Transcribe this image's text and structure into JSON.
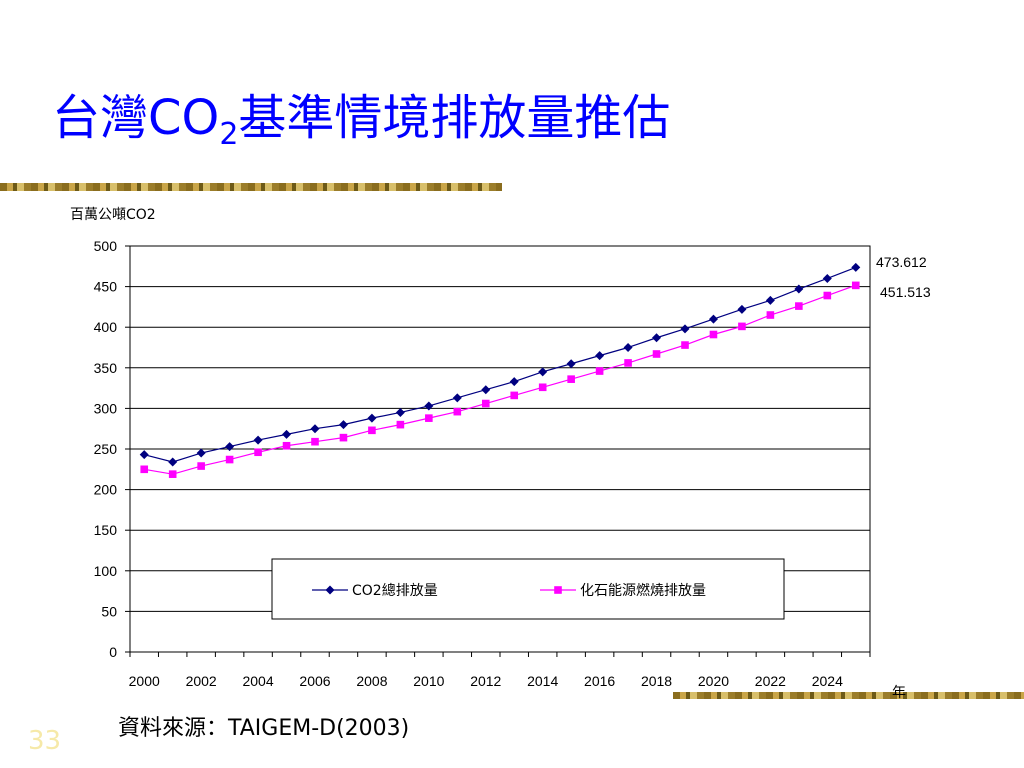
{
  "slide": {
    "title_prefix": "台灣CO",
    "title_sub": "2",
    "title_suffix": "基準情境排放量推估",
    "source": "資料來源：TAIGEM-D(2003)",
    "page_number": "33"
  },
  "chart_data": {
    "type": "line",
    "ylabel": "百萬公噸CO2",
    "xlabel": "年",
    "ylim": [
      0,
      500
    ],
    "yticks": [
      0,
      50,
      100,
      150,
      200,
      250,
      300,
      350,
      400,
      450,
      500
    ],
    "x": [
      2000,
      2001,
      2002,
      2003,
      2004,
      2005,
      2006,
      2007,
      2008,
      2009,
      2010,
      2011,
      2012,
      2013,
      2014,
      2015,
      2016,
      2017,
      2018,
      2019,
      2020,
      2021,
      2022,
      2023,
      2024,
      2025
    ],
    "xtick_labels": [
      "2000",
      "2002",
      "2004",
      "2006",
      "2008",
      "2010",
      "2012",
      "2014",
      "2016",
      "2018",
      "2020",
      "2022",
      "2024"
    ],
    "grid": "horizontal",
    "legend_position": "bottom-center",
    "series": [
      {
        "name": "CO2總排放量",
        "color": "#000080",
        "marker": "diamond",
        "values": [
          243,
          234,
          245,
          253,
          261,
          268,
          275,
          280,
          288,
          295,
          303,
          313,
          323,
          333,
          345,
          355,
          365,
          375,
          387,
          398,
          410,
          422,
          433,
          447,
          460,
          473.612
        ],
        "end_label": "473.612"
      },
      {
        "name": "化石能源燃燒排放量",
        "color": "#ff00ff",
        "marker": "square",
        "values": [
          225,
          219,
          229,
          237,
          246,
          254,
          259,
          264,
          273,
          280,
          288,
          296,
          306,
          316,
          326,
          336,
          346,
          356,
          367,
          378,
          391,
          401,
          415,
          426,
          439,
          451.513
        ],
        "end_label": "451.513"
      }
    ]
  }
}
